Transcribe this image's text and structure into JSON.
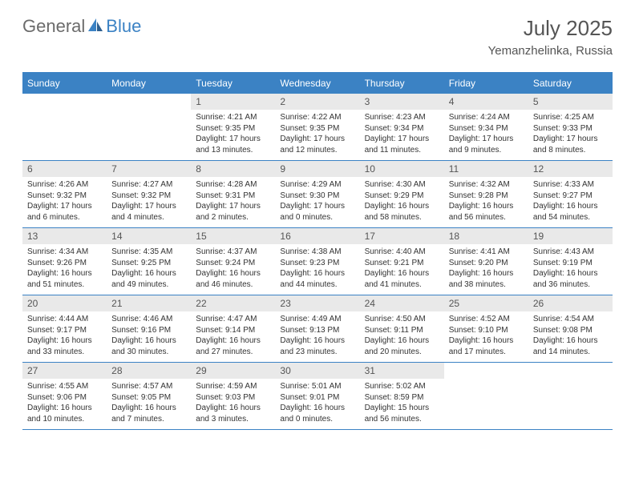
{
  "logo": {
    "text1": "General",
    "text2": "Blue"
  },
  "title": "July 2025",
  "location": "Yemanzhelinka, Russia",
  "colors": {
    "header_bg": "#3b82c4",
    "header_text": "#ffffff",
    "daynum_bg": "#e9e9e9",
    "cell_border": "#3b82c4",
    "body_text": "#333333",
    "title_text": "#555555",
    "logo_gray": "#6b6b6b",
    "logo_blue": "#3b82c4",
    "page_bg": "#ffffff"
  },
  "layout": {
    "columns": 7,
    "rows": 5,
    "first_day_column_index": 2,
    "th_fontsize": 12,
    "daynum_fontsize": 12,
    "daytext_fontsize": 10,
    "title_fontsize": 26,
    "location_fontsize": 15
  },
  "weekdays": [
    "Sunday",
    "Monday",
    "Tuesday",
    "Wednesday",
    "Thursday",
    "Friday",
    "Saturday"
  ],
  "days": [
    {
      "n": 1,
      "sunrise": "4:21 AM",
      "sunset": "9:35 PM",
      "daylight": "17 hours and 13 minutes."
    },
    {
      "n": 2,
      "sunrise": "4:22 AM",
      "sunset": "9:35 PM",
      "daylight": "17 hours and 12 minutes."
    },
    {
      "n": 3,
      "sunrise": "4:23 AM",
      "sunset": "9:34 PM",
      "daylight": "17 hours and 11 minutes."
    },
    {
      "n": 4,
      "sunrise": "4:24 AM",
      "sunset": "9:34 PM",
      "daylight": "17 hours and 9 minutes."
    },
    {
      "n": 5,
      "sunrise": "4:25 AM",
      "sunset": "9:33 PM",
      "daylight": "17 hours and 8 minutes."
    },
    {
      "n": 6,
      "sunrise": "4:26 AM",
      "sunset": "9:32 PM",
      "daylight": "17 hours and 6 minutes."
    },
    {
      "n": 7,
      "sunrise": "4:27 AM",
      "sunset": "9:32 PM",
      "daylight": "17 hours and 4 minutes."
    },
    {
      "n": 8,
      "sunrise": "4:28 AM",
      "sunset": "9:31 PM",
      "daylight": "17 hours and 2 minutes."
    },
    {
      "n": 9,
      "sunrise": "4:29 AM",
      "sunset": "9:30 PM",
      "daylight": "17 hours and 0 minutes."
    },
    {
      "n": 10,
      "sunrise": "4:30 AM",
      "sunset": "9:29 PM",
      "daylight": "16 hours and 58 minutes."
    },
    {
      "n": 11,
      "sunrise": "4:32 AM",
      "sunset": "9:28 PM",
      "daylight": "16 hours and 56 minutes."
    },
    {
      "n": 12,
      "sunrise": "4:33 AM",
      "sunset": "9:27 PM",
      "daylight": "16 hours and 54 minutes."
    },
    {
      "n": 13,
      "sunrise": "4:34 AM",
      "sunset": "9:26 PM",
      "daylight": "16 hours and 51 minutes."
    },
    {
      "n": 14,
      "sunrise": "4:35 AM",
      "sunset": "9:25 PM",
      "daylight": "16 hours and 49 minutes."
    },
    {
      "n": 15,
      "sunrise": "4:37 AM",
      "sunset": "9:24 PM",
      "daylight": "16 hours and 46 minutes."
    },
    {
      "n": 16,
      "sunrise": "4:38 AM",
      "sunset": "9:23 PM",
      "daylight": "16 hours and 44 minutes."
    },
    {
      "n": 17,
      "sunrise": "4:40 AM",
      "sunset": "9:21 PM",
      "daylight": "16 hours and 41 minutes."
    },
    {
      "n": 18,
      "sunrise": "4:41 AM",
      "sunset": "9:20 PM",
      "daylight": "16 hours and 38 minutes."
    },
    {
      "n": 19,
      "sunrise": "4:43 AM",
      "sunset": "9:19 PM",
      "daylight": "16 hours and 36 minutes."
    },
    {
      "n": 20,
      "sunrise": "4:44 AM",
      "sunset": "9:17 PM",
      "daylight": "16 hours and 33 minutes."
    },
    {
      "n": 21,
      "sunrise": "4:46 AM",
      "sunset": "9:16 PM",
      "daylight": "16 hours and 30 minutes."
    },
    {
      "n": 22,
      "sunrise": "4:47 AM",
      "sunset": "9:14 PM",
      "daylight": "16 hours and 27 minutes."
    },
    {
      "n": 23,
      "sunrise": "4:49 AM",
      "sunset": "9:13 PM",
      "daylight": "16 hours and 23 minutes."
    },
    {
      "n": 24,
      "sunrise": "4:50 AM",
      "sunset": "9:11 PM",
      "daylight": "16 hours and 20 minutes."
    },
    {
      "n": 25,
      "sunrise": "4:52 AM",
      "sunset": "9:10 PM",
      "daylight": "16 hours and 17 minutes."
    },
    {
      "n": 26,
      "sunrise": "4:54 AM",
      "sunset": "9:08 PM",
      "daylight": "16 hours and 14 minutes."
    },
    {
      "n": 27,
      "sunrise": "4:55 AM",
      "sunset": "9:06 PM",
      "daylight": "16 hours and 10 minutes."
    },
    {
      "n": 28,
      "sunrise": "4:57 AM",
      "sunset": "9:05 PM",
      "daylight": "16 hours and 7 minutes."
    },
    {
      "n": 29,
      "sunrise": "4:59 AM",
      "sunset": "9:03 PM",
      "daylight": "16 hours and 3 minutes."
    },
    {
      "n": 30,
      "sunrise": "5:01 AM",
      "sunset": "9:01 PM",
      "daylight": "16 hours and 0 minutes."
    },
    {
      "n": 31,
      "sunrise": "5:02 AM",
      "sunset": "8:59 PM",
      "daylight": "15 hours and 56 minutes."
    }
  ],
  "labels": {
    "sunrise": "Sunrise:",
    "sunset": "Sunset:",
    "daylight": "Daylight:"
  }
}
